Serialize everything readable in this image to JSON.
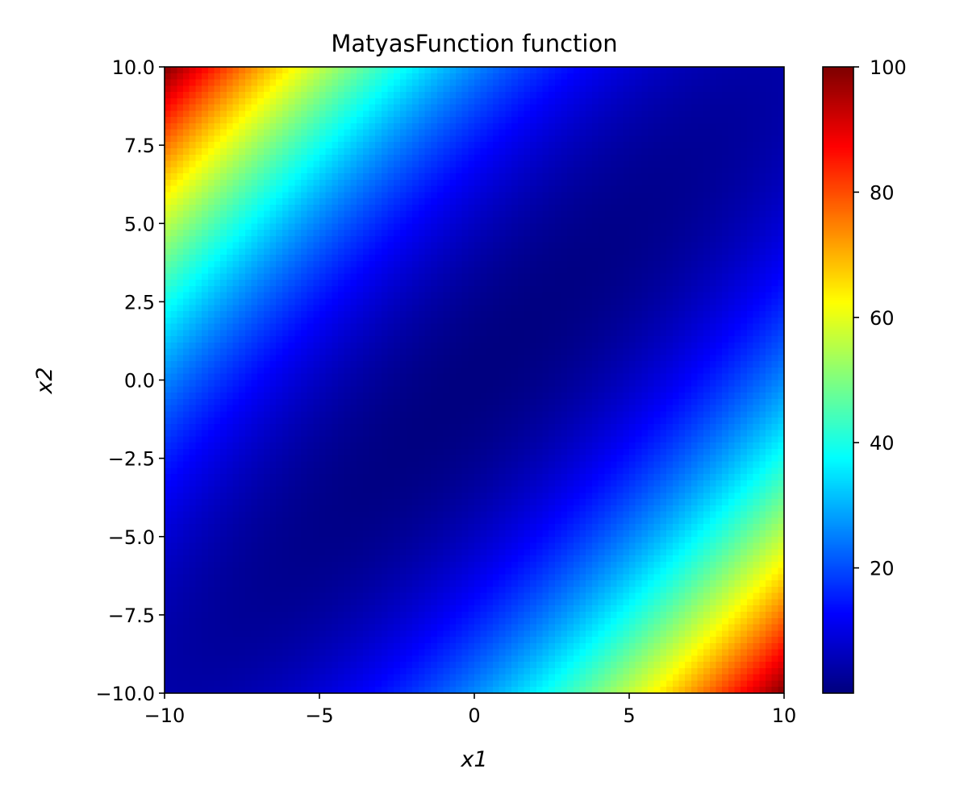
{
  "chart_data": {
    "type": "heatmap",
    "title": "MatyasFunction function",
    "xlabel": "x1",
    "ylabel": "x2",
    "xlim": [
      -10,
      10
    ],
    "ylim": [
      -10,
      10
    ],
    "grid_resolution": 100,
    "function": "0.26*(x1^2 + x2^2) - 0.48*x1*x2",
    "colormap": "jet",
    "color_range": [
      0,
      100
    ],
    "x_ticks": [
      -10,
      -5,
      0,
      5,
      10
    ],
    "x_tick_labels": [
      "−10",
      "−5",
      "0",
      "5",
      "10"
    ],
    "y_ticks": [
      10,
      7.5,
      5,
      2.5,
      0,
      -2.5,
      -5,
      -7.5,
      -10
    ],
    "y_tick_labels": [
      "10.0",
      "7.5",
      "5.0",
      "2.5",
      "0.0",
      "−2.5",
      "−5.0",
      "−7.5",
      "−10.0"
    ],
    "colorbar_ticks": [
      20,
      40,
      60,
      80,
      100
    ],
    "colorbar_tick_labels": [
      "20",
      "40",
      "60",
      "80",
      "100"
    ],
    "grid": false
  }
}
